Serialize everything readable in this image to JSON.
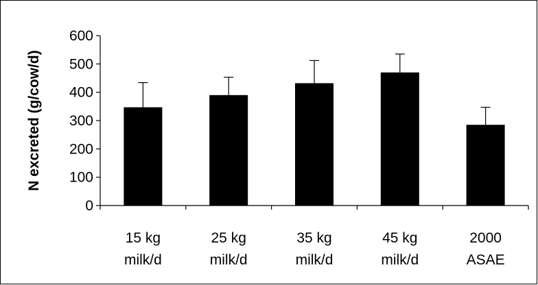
{
  "chart_data": {
    "type": "bar",
    "title": "",
    "xlabel": "",
    "ylabel": "N excreted (g/cow/d)",
    "ylim": [
      0,
      600
    ],
    "yticks": [
      0,
      100,
      200,
      300,
      400,
      500,
      600
    ],
    "grid": false,
    "legend": "none",
    "categories": [
      [
        "15 kg",
        "milk/d"
      ],
      [
        "25 kg",
        "milk/d"
      ],
      [
        "35 kg",
        "milk/d"
      ],
      [
        "45 kg",
        "milk/d"
      ],
      [
        "2000",
        "ASAE"
      ]
    ],
    "values": [
      347,
      390,
      432,
      470,
      285
    ],
    "error_plus": [
      87,
      63,
      80,
      65,
      62
    ],
    "bar_color": "#000000"
  }
}
